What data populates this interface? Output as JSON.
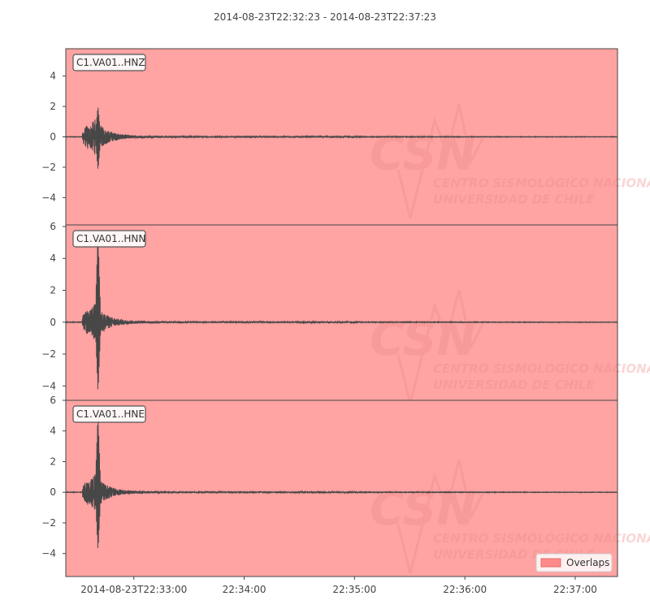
{
  "colors": {
    "overlap_fill": "#ffa3a3",
    "trace": "#474747",
    "axis": "#444444",
    "legend_patch": "#ff8a8a",
    "watermark": "#f08c8c"
  },
  "chart_data": {
    "type": "line",
    "title": "2014-08-23T22:32:23  -  2014-08-23T22:37:23",
    "time_range": [
      "2014-08-23T22:32:23",
      "2014-08-23T22:37:23"
    ],
    "x_tick_labels": [
      "2014-08-23T22:33:00",
      "22:34:00",
      "22:35:00",
      "22:36:00",
      "22:37:00"
    ],
    "x_tick_seconds": [
      37,
      97,
      157,
      217,
      277
    ],
    "legend": {
      "label": "Overlaps",
      "placement": "lower-right"
    },
    "watermark": {
      "logo": "CSN",
      "text": [
        "CENTRO SISMOLÓGICO NACIONAL",
        "UNIVERSIDAD DE CHILE"
      ]
    },
    "panels": [
      {
        "label": "C1.VA01..HNZ",
        "ylim": [
          -5.8,
          5.8
        ],
        "y_ticks": [
          -4,
          -2,
          0,
          2,
          4
        ],
        "y_tick_labels": [
          "−4",
          "−2",
          "0",
          "2",
          "4"
        ],
        "peak_positive": 2.1,
        "peak_negative": -2.3,
        "peak_time_s": 17.5,
        "onset_s": 9
      },
      {
        "label": "C1.VA01..HNN",
        "ylim": [
          -4.9,
          6.1
        ],
        "y_ticks": [
          -4,
          -2,
          0,
          2,
          4,
          6
        ],
        "y_tick_labels": [
          "−4",
          "−2",
          "0",
          "2",
          "4",
          "6"
        ],
        "peak_positive": 5.9,
        "peak_negative": -4.6,
        "peak_time_s": 17.5,
        "onset_s": 9
      },
      {
        "label": "C1.VA01..HNE",
        "ylim": [
          -5.5,
          6.0
        ],
        "y_ticks": [
          -4,
          -2,
          0,
          2,
          4,
          6
        ],
        "y_tick_labels": [
          "−4",
          "−2",
          "0",
          "2",
          "4",
          "6"
        ],
        "peak_positive": 5.3,
        "peak_negative": -4.0,
        "peak_time_s": 17.5,
        "onset_s": 9
      }
    ]
  }
}
